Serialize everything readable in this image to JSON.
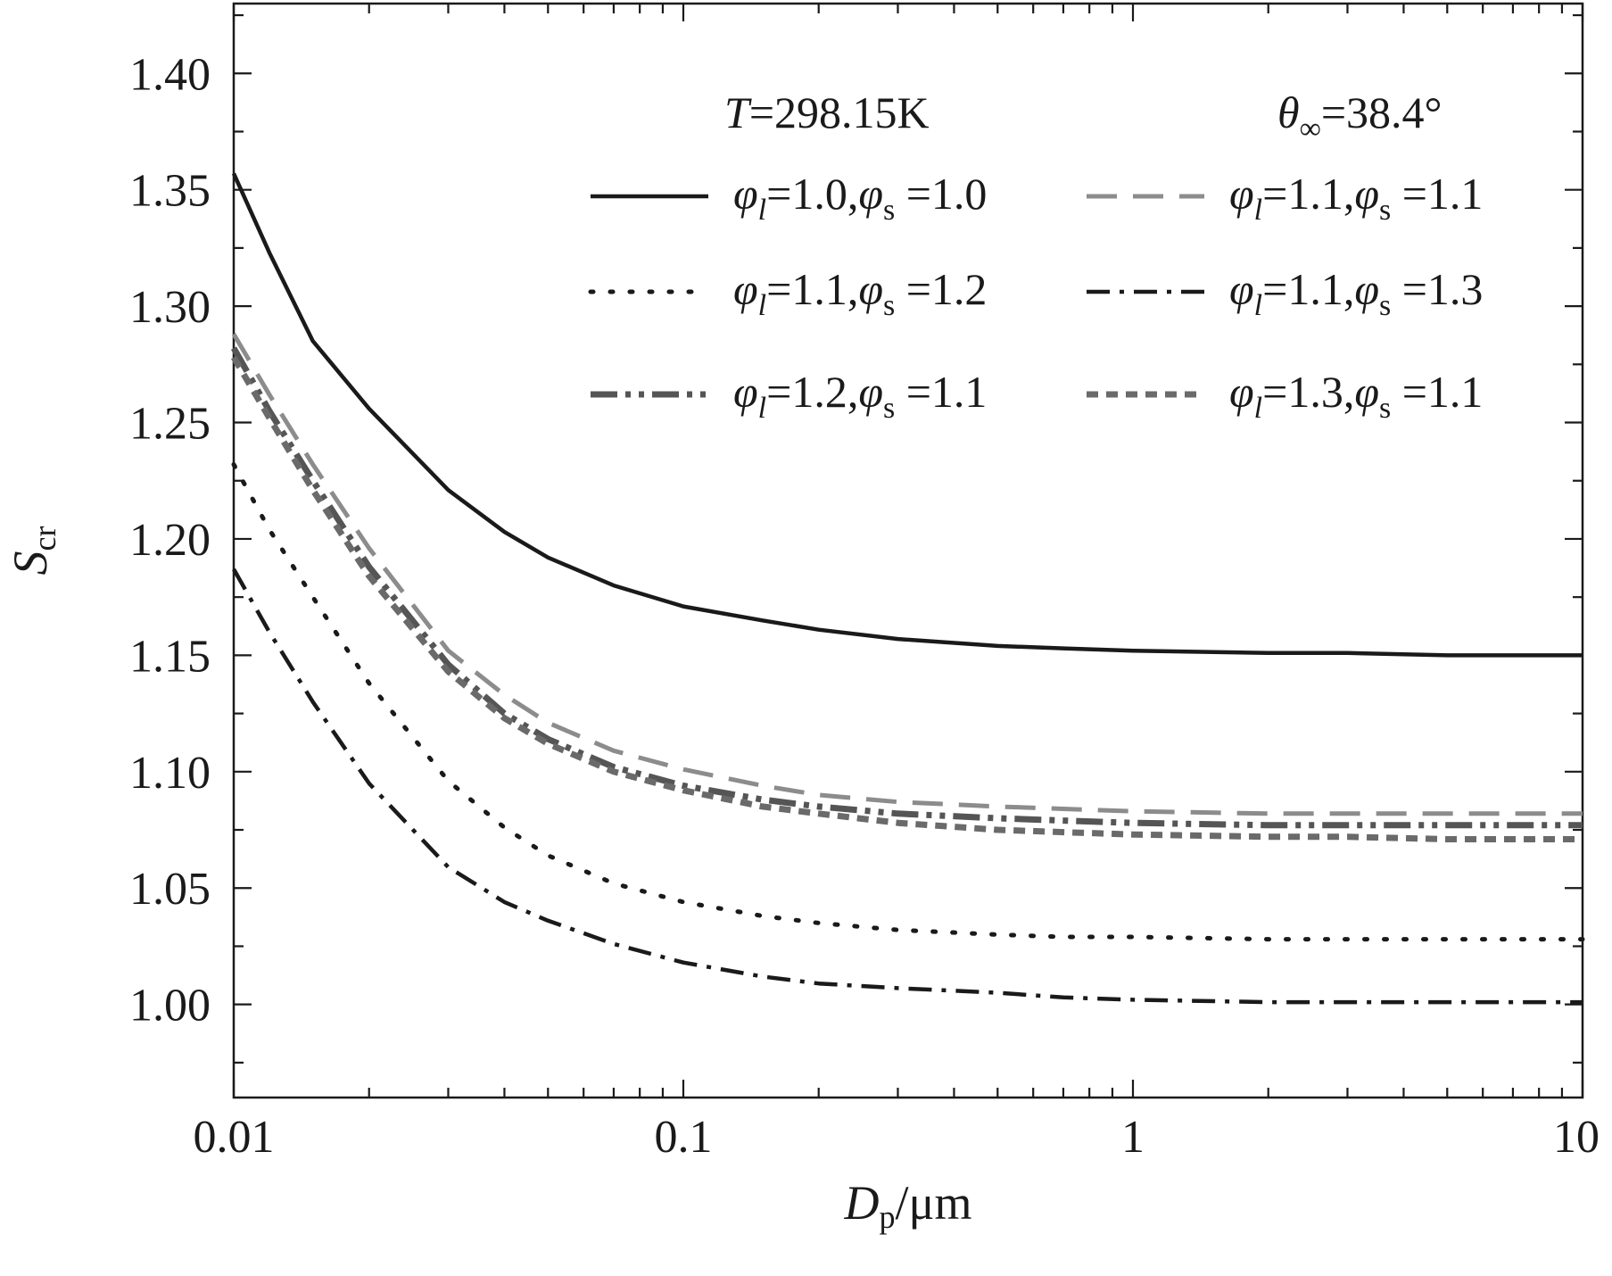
{
  "chart_data": {
    "type": "line",
    "title": "",
    "xlabel": {
      "main": "D",
      "sub": "p",
      "rest": "/μm"
    },
    "ylabel": {
      "main": "S",
      "sub": "cr"
    },
    "xscale": "log",
    "xlim": [
      0.01,
      10
    ],
    "ylim": [
      0.96,
      1.43
    ],
    "x_ticks": [
      {
        "value": 0.01,
        "label": "0.01"
      },
      {
        "value": 0.1,
        "label": "0.1"
      },
      {
        "value": 1,
        "label": "1"
      },
      {
        "value": 10,
        "label": "10"
      }
    ],
    "y_ticks": [
      {
        "value": 1.0,
        "label": "1.00"
      },
      {
        "value": 1.05,
        "label": "1.05"
      },
      {
        "value": 1.1,
        "label": "1.10"
      },
      {
        "value": 1.15,
        "label": "1.15"
      },
      {
        "value": 1.2,
        "label": "1.20"
      },
      {
        "value": 1.25,
        "label": "1.25"
      },
      {
        "value": 1.3,
        "label": "1.30"
      },
      {
        "value": 1.35,
        "label": "1.35"
      },
      {
        "value": 1.4,
        "label": "1.40"
      }
    ],
    "annotations": [
      {
        "italic": "T",
        "text": "=298.15K"
      },
      {
        "italic": "θ",
        "sub": "∞",
        "text": "=38.4°"
      }
    ],
    "legend_position": "top-right",
    "x": [
      0.01,
      0.012,
      0.015,
      0.02,
      0.03,
      0.04,
      0.05,
      0.07,
      0.1,
      0.15,
      0.2,
      0.3,
      0.5,
      0.7,
      1,
      2,
      3,
      5,
      10
    ],
    "series": [
      {
        "phi_l": "1.0",
        "phi_s": "1.0",
        "style": "solid",
        "color": "#1a1a1a",
        "values": [
          1.357,
          1.323,
          1.285,
          1.256,
          1.221,
          1.203,
          1.192,
          1.18,
          1.171,
          1.165,
          1.161,
          1.157,
          1.154,
          1.153,
          1.152,
          1.151,
          1.151,
          1.15,
          1.15
        ]
      },
      {
        "phi_l": "1.1",
        "phi_s": "1.1",
        "style": "dash",
        "color": "#8c8c8c",
        "values": [
          1.288,
          1.262,
          1.232,
          1.196,
          1.152,
          1.133,
          1.121,
          1.109,
          1.101,
          1.094,
          1.09,
          1.087,
          1.085,
          1.084,
          1.083,
          1.082,
          1.082,
          1.082,
          1.082
        ]
      },
      {
        "phi_l": "1.1",
        "phi_s": "1.2",
        "style": "dot",
        "color": "#1a1a1a",
        "values": [
          1.232,
          1.204,
          1.175,
          1.138,
          1.096,
          1.076,
          1.064,
          1.052,
          1.044,
          1.038,
          1.035,
          1.032,
          1.03,
          1.029,
          1.029,
          1.028,
          1.028,
          1.028,
          1.028
        ]
      },
      {
        "phi_l": "1.1",
        "phi_s": "1.3",
        "style": "dashdot",
        "color": "#1a1a1a",
        "values": [
          1.187,
          1.16,
          1.13,
          1.095,
          1.059,
          1.044,
          1.036,
          1.026,
          1.018,
          1.012,
          1.009,
          1.007,
          1.005,
          1.003,
          1.002,
          1.001,
          1.001,
          1.001,
          1.001
        ]
      },
      {
        "phi_l": "1.2",
        "phi_s": "1.1",
        "style": "dashdotdot",
        "color": "#555555",
        "values": [
          1.282,
          1.255,
          1.225,
          1.188,
          1.146,
          1.125,
          1.114,
          1.102,
          1.094,
          1.088,
          1.085,
          1.082,
          1.08,
          1.079,
          1.078,
          1.077,
          1.077,
          1.077,
          1.077
        ]
      },
      {
        "phi_l": "1.3",
        "phi_s": "1.1",
        "style": "shortdash",
        "color": "#6a6a6a",
        "values": [
          1.278,
          1.252,
          1.221,
          1.184,
          1.143,
          1.123,
          1.112,
          1.1,
          1.092,
          1.085,
          1.082,
          1.078,
          1.075,
          1.074,
          1.073,
          1.072,
          1.072,
          1.071,
          1.071
        ]
      }
    ]
  }
}
